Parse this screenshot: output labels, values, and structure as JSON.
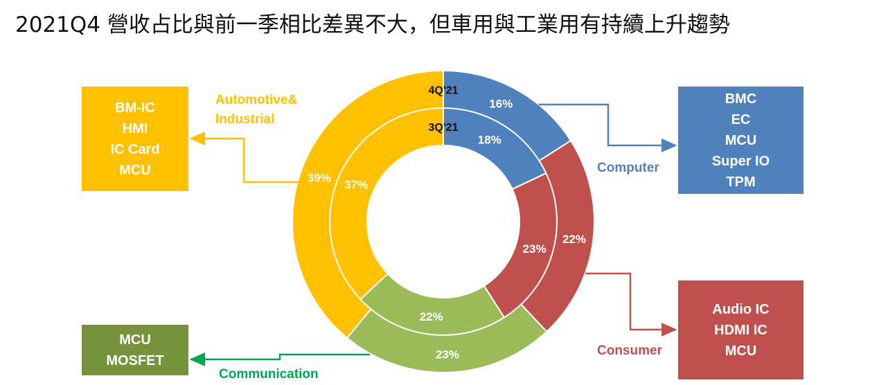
{
  "title": "2021Q4 營收占比與前一季相比差異不大，但車用與工業用有持續上升趨勢",
  "chart_data": {
    "type": "pie",
    "subtype": "nested-donut",
    "rings": [
      {
        "label": "4Q'21",
        "ring": "outer",
        "values": {
          "Computer": 16,
          "Consumer": 22,
          "Communication": 23,
          "Automotive&Industrial": 39
        }
      },
      {
        "label": "3Q'21",
        "ring": "inner",
        "values": {
          "Computer": 18,
          "Consumer": 23,
          "Communication": 22,
          "Automotive&Industrial": 37
        }
      }
    ],
    "categories": [
      "Computer",
      "Consumer",
      "Communication",
      "Automotive&Industrial"
    ],
    "colors": {
      "Computer": "#4f81bd",
      "Consumer": "#c0504d",
      "Communication": "#9bbb59",
      "Automotive&Industrial": "#ffc000"
    },
    "value_labels": {
      "outer": [
        "16%",
        "22%",
        "23%",
        "39%"
      ],
      "inner": [
        "18%",
        "23%",
        "22%",
        "37%"
      ]
    }
  },
  "segments": {
    "computer": {
      "label": "Computer",
      "color": "#4f81bd",
      "products": [
        "BMC",
        "EC",
        "MCU",
        "Super IO",
        "TPM"
      ]
    },
    "consumer": {
      "label": "Consumer",
      "color": "#c0504d",
      "products": [
        "Audio IC",
        "HDMI IC",
        "MCU"
      ]
    },
    "communication": {
      "label": "Communication",
      "color": "#00a651",
      "box_color": "#76923c",
      "products": [
        "MCU",
        "MOSFET"
      ]
    },
    "automotive": {
      "label_line1": "Automotive&",
      "label_line2": "Industrial",
      "color": "#ffc000",
      "products": [
        "BM-IC",
        "HMI",
        "IC Card",
        "MCU"
      ]
    }
  }
}
